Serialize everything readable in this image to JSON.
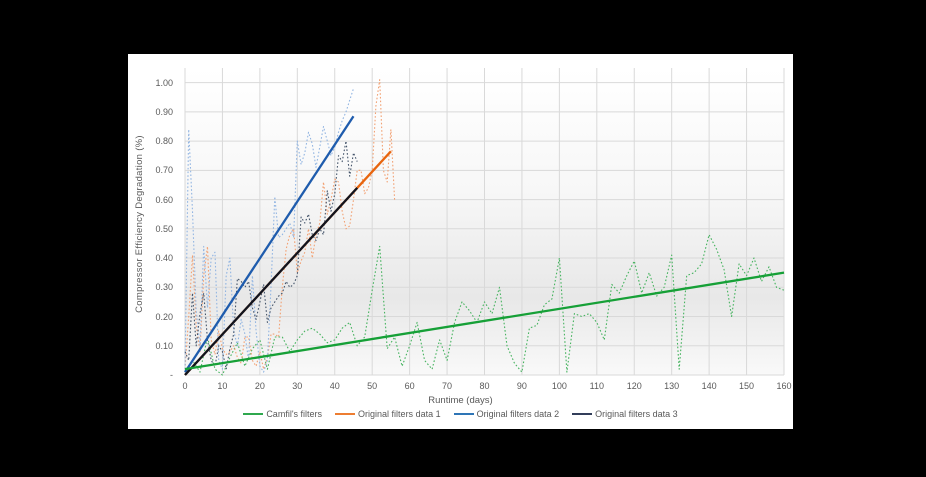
{
  "canvas": {
    "background": "#000000",
    "card_background": "#ffffff"
  },
  "chart_data": {
    "type": "line",
    "title": "",
    "xlabel": "Runtime (days)",
    "ylabel": "Compressor Efficiency Degradation (%)",
    "xlim": [
      0,
      160
    ],
    "ylim": [
      0,
      1.05
    ],
    "grid": true,
    "legend_position": "bottom",
    "axis": {
      "tick_color": "#595959",
      "grid_color": "#d9d9d9",
      "x_ticks": [
        0,
        10,
        20,
        30,
        40,
        50,
        60,
        70,
        80,
        90,
        100,
        110,
        120,
        130,
        140,
        150,
        160
      ],
      "y_ticks": [
        {
          "value": 1.0,
          "label": "1.00"
        },
        {
          "value": 0.9,
          "label": "0.90"
        },
        {
          "value": 0.8,
          "label": "0.80"
        },
        {
          "value": 0.7,
          "label": "0.70"
        },
        {
          "value": 0.6,
          "label": "0.60"
        },
        {
          "value": 0.5,
          "label": "0.50"
        },
        {
          "value": 0.4,
          "label": "0.40"
        },
        {
          "value": 0.3,
          "label": "0.30"
        },
        {
          "value": 0.2,
          "label": "0.20"
        },
        {
          "value": 0.1,
          "label": "0.10"
        },
        {
          "value": 0.0,
          "label": "-"
        }
      ]
    },
    "plot_bg_gradient": [
      "#ffffff",
      "#f7f7f7",
      "#e8e8e8",
      "#f9f9f9"
    ],
    "series": [
      {
        "name": "Camfil's filters",
        "line_style": "dotted",
        "data_color": "#46b35f",
        "trend_color": "#16a037",
        "legend_color": "#2fa84e",
        "x": [
          0,
          2,
          4,
          6,
          8,
          10,
          12,
          14,
          16,
          18,
          20,
          22,
          24,
          26,
          28,
          30,
          32,
          34,
          36,
          38,
          40,
          42,
          44,
          46,
          48,
          50,
          52,
          54,
          56,
          58,
          60,
          62,
          64,
          66,
          68,
          70,
          72,
          74,
          76,
          78,
          80,
          82,
          84,
          86,
          88,
          90,
          92,
          94,
          96,
          98,
          100,
          102,
          104,
          106,
          108,
          110,
          112,
          114,
          116,
          118,
          120,
          122,
          124,
          126,
          128,
          130,
          132,
          134,
          136,
          138,
          140,
          142,
          144,
          146,
          148,
          150,
          152,
          154,
          156,
          158,
          160
        ],
        "values": [
          0.0,
          0.05,
          0.01,
          0.13,
          0.02,
          0.0,
          0.06,
          0.11,
          0.03,
          0.09,
          0.12,
          0.02,
          0.13,
          0.13,
          0.08,
          0.12,
          0.15,
          0.16,
          0.14,
          0.11,
          0.12,
          0.16,
          0.18,
          0.1,
          0.13,
          0.29,
          0.44,
          0.09,
          0.13,
          0.03,
          0.1,
          0.18,
          0.05,
          0.02,
          0.12,
          0.05,
          0.18,
          0.25,
          0.22,
          0.18,
          0.25,
          0.21,
          0.3,
          0.1,
          0.04,
          0.01,
          0.16,
          0.17,
          0.24,
          0.26,
          0.4,
          0.01,
          0.21,
          0.2,
          0.21,
          0.18,
          0.12,
          0.31,
          0.28,
          0.34,
          0.39,
          0.28,
          0.35,
          0.27,
          0.3,
          0.41,
          0.02,
          0.34,
          0.35,
          0.38,
          0.48,
          0.43,
          0.36,
          0.2,
          0.38,
          0.34,
          0.4,
          0.32,
          0.37,
          0.3,
          0.29
        ],
        "trend": {
          "x": [
            0,
            160
          ],
          "y": [
            0.02,
            0.35
          ]
        }
      },
      {
        "name": "Original filters data 1",
        "line_style": "dotted",
        "data_color": "#f2a173",
        "trend_color": "#e8650e",
        "legend_color": "#ed7d31",
        "x": [
          0,
          1,
          2,
          3,
          4,
          5,
          6,
          7,
          8,
          9,
          10,
          11,
          12,
          13,
          14,
          15,
          16,
          17,
          18,
          19,
          20,
          21,
          22,
          23,
          24,
          25,
          26,
          27,
          28,
          29,
          30,
          31,
          32,
          33,
          34,
          35,
          36,
          37,
          38,
          39,
          40,
          41,
          42,
          43,
          44,
          45,
          46,
          47,
          48,
          49,
          50,
          51,
          52,
          53,
          54,
          55,
          56
        ],
        "values": [
          0.02,
          0.2,
          0.41,
          0.17,
          0.08,
          0.34,
          0.44,
          0.12,
          0.07,
          0.15,
          0.09,
          0.07,
          0.08,
          0.1,
          0.06,
          0.04,
          0.13,
          0.13,
          0.05,
          0.03,
          0.08,
          0.02,
          0.06,
          0.14,
          0.14,
          0.13,
          0.3,
          0.43,
          0.48,
          0.5,
          0.35,
          0.39,
          0.42,
          0.5,
          0.4,
          0.48,
          0.52,
          0.66,
          0.55,
          0.6,
          0.67,
          0.66,
          0.56,
          0.5,
          0.51,
          0.6,
          0.7,
          0.7,
          0.62,
          0.64,
          0.7,
          0.92,
          1.01,
          0.7,
          0.66,
          0.84,
          0.6
        ],
        "trend": {
          "x": [
            0,
            55
          ],
          "y": [
            0.0,
            0.765
          ]
        }
      },
      {
        "name": "Original filters data 2",
        "line_style": "dotted",
        "data_color": "#92b5e2",
        "trend_color": "#1f5cad",
        "legend_color": "#2e75b6",
        "x": [
          0,
          1,
          2,
          3,
          4,
          5,
          6,
          7,
          8,
          9,
          10,
          11,
          12,
          13,
          14,
          15,
          16,
          17,
          18,
          19,
          20,
          21,
          22,
          23,
          24,
          25,
          26,
          27,
          28,
          29,
          30,
          31,
          32,
          33,
          34,
          35,
          36,
          37,
          38,
          39,
          40,
          41,
          42,
          43,
          44,
          45
        ],
        "values": [
          0.02,
          0.84,
          0.56,
          0.22,
          0.1,
          0.44,
          0.23,
          0.4,
          0.42,
          0.05,
          0.02,
          0.34,
          0.4,
          0.15,
          0.1,
          0.19,
          0.14,
          0.05,
          0.34,
          0.15,
          0.03,
          0.01,
          0.05,
          0.31,
          0.61,
          0.47,
          0.48,
          0.5,
          0.52,
          0.47,
          0.8,
          0.72,
          0.76,
          0.83,
          0.79,
          0.71,
          0.78,
          0.85,
          0.8,
          0.75,
          0.78,
          0.83,
          0.87,
          0.9,
          0.94,
          0.98
        ],
        "trend": {
          "x": [
            0,
            45
          ],
          "y": [
            0.01,
            0.885
          ]
        }
      },
      {
        "name": "Original filters data 3",
        "line_style": "dotted",
        "data_color": "#44546a",
        "trend_color": "#10141f",
        "legend_color": "#323e5a",
        "x": [
          0,
          1,
          2,
          3,
          4,
          5,
          6,
          7,
          8,
          9,
          10,
          11,
          12,
          13,
          14,
          15,
          16,
          17,
          18,
          19,
          20,
          21,
          22,
          23,
          24,
          25,
          26,
          27,
          28,
          29,
          30,
          31,
          32,
          33,
          34,
          35,
          36,
          37,
          38,
          39,
          40,
          41,
          42,
          43,
          44,
          45,
          46
        ],
        "values": [
          0.08,
          0.05,
          0.28,
          0.1,
          0.21,
          0.28,
          0.12,
          0.05,
          0.03,
          0.1,
          0.08,
          0.02,
          0.09,
          0.14,
          0.33,
          0.32,
          0.3,
          0.32,
          0.23,
          0.19,
          0.25,
          0.31,
          0.18,
          0.23,
          0.25,
          0.27,
          0.28,
          0.32,
          0.3,
          0.31,
          0.34,
          0.54,
          0.52,
          0.55,
          0.48,
          0.46,
          0.5,
          0.48,
          0.63,
          0.56,
          0.62,
          0.75,
          0.73,
          0.8,
          0.68,
          0.76,
          0.73
        ],
        "trend": {
          "x": [
            0,
            46
          ],
          "y": [
            0.0,
            0.64
          ]
        }
      }
    ]
  }
}
